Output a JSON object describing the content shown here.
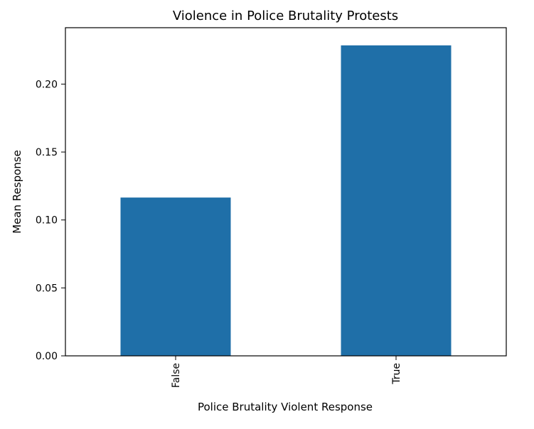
{
  "chart_data": {
    "type": "bar",
    "title": "Violence in Police Brutality Protests",
    "xlabel": "Police Brutality Violent Response",
    "ylabel": "Mean Response",
    "categories": [
      "False",
      "True"
    ],
    "values": [
      0.1165,
      0.2285
    ],
    "ylim": [
      0,
      0.2415
    ],
    "yticks": [
      0.0,
      0.05,
      0.1,
      0.15,
      0.2
    ],
    "ytick_labels": [
      "0.00",
      "0.05",
      "0.10",
      "0.15",
      "0.20"
    ],
    "grid": false,
    "bar_color": "#1f6fa8",
    "x_tick_rotation": "vertical"
  }
}
